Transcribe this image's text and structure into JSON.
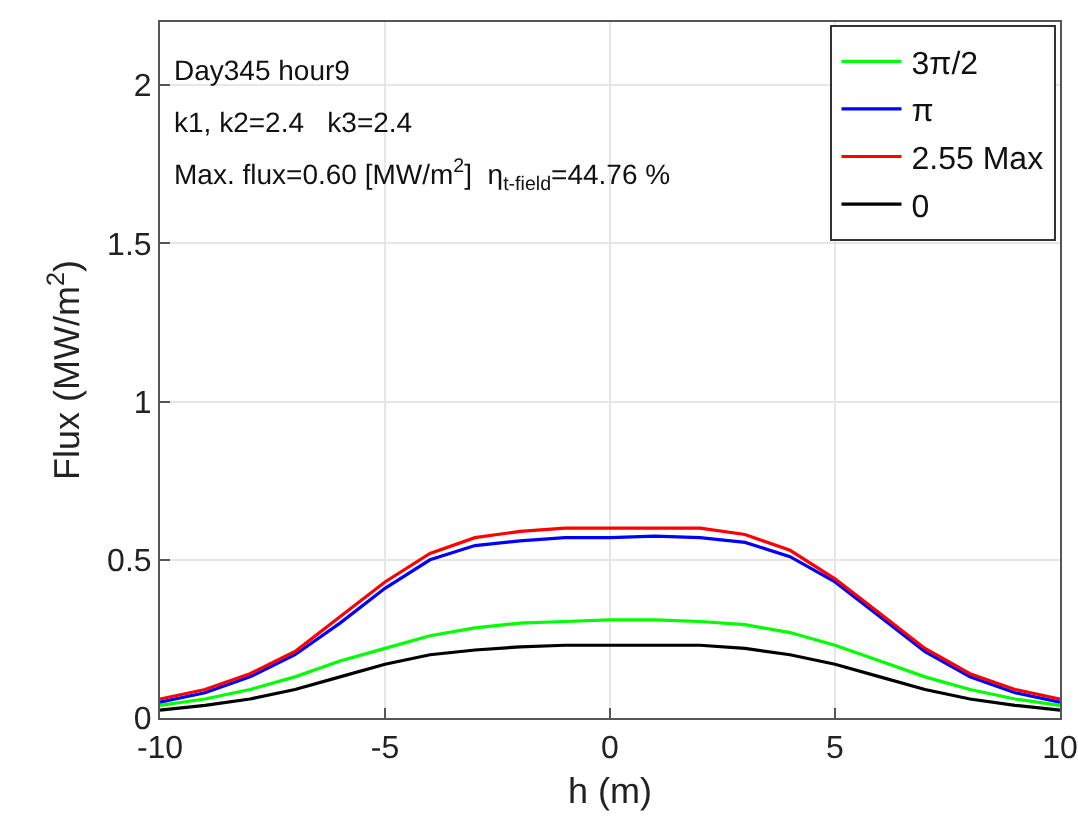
{
  "chart_data": {
    "type": "line",
    "xlabel": "h (m)",
    "ylabel": "Flux (MW/m$^{2}$)",
    "x": [
      -10,
      -9,
      -8,
      -7,
      -6,
      -5,
      -4,
      -3,
      -2,
      -1,
      0,
      1,
      2,
      3,
      4,
      5,
      6,
      7,
      8,
      9,
      10
    ],
    "series": [
      {
        "name": "3π/2",
        "color": "#00ff00",
        "values": [
          0.04,
          0.06,
          0.09,
          0.13,
          0.18,
          0.22,
          0.26,
          0.285,
          0.3,
          0.305,
          0.31,
          0.31,
          0.305,
          0.295,
          0.27,
          0.23,
          0.18,
          0.13,
          0.09,
          0.06,
          0.04
        ]
      },
      {
        "name": "π",
        "color": "#0000ff",
        "values": [
          0.05,
          0.08,
          0.13,
          0.2,
          0.3,
          0.41,
          0.5,
          0.545,
          0.56,
          0.57,
          0.57,
          0.575,
          0.57,
          0.555,
          0.51,
          0.43,
          0.32,
          0.21,
          0.13,
          0.08,
          0.05
        ]
      },
      {
        "name": "2.55 Max",
        "color": "#ff0000",
        "values": [
          0.06,
          0.09,
          0.14,
          0.21,
          0.32,
          0.43,
          0.52,
          0.57,
          0.59,
          0.6,
          0.6,
          0.6,
          0.6,
          0.58,
          0.53,
          0.44,
          0.33,
          0.22,
          0.14,
          0.09,
          0.06
        ]
      },
      {
        "name": "0",
        "color": "#000000",
        "values": [
          0.025,
          0.04,
          0.06,
          0.09,
          0.13,
          0.17,
          0.2,
          0.215,
          0.225,
          0.23,
          0.23,
          0.23,
          0.23,
          0.22,
          0.2,
          0.17,
          0.13,
          0.09,
          0.06,
          0.04,
          0.025
        ]
      }
    ],
    "annotations": [
      "Day345 hour9",
      "k1, k2=2.4   k3=2.4",
      "Max. flux=0.60 [MW/m$^{2}$]  η$_{t-field}$=44.76 %"
    ],
    "xlim": [
      -10,
      10
    ],
    "xticks": [
      -10,
      -5,
      0,
      5,
      10
    ],
    "ylim": [
      0,
      2.2
    ],
    "yticks": [
      0,
      0.5,
      1,
      1.5,
      2
    ],
    "grid": true,
    "legend": "top right",
    "line_style": "solid",
    "marker": "none"
  }
}
